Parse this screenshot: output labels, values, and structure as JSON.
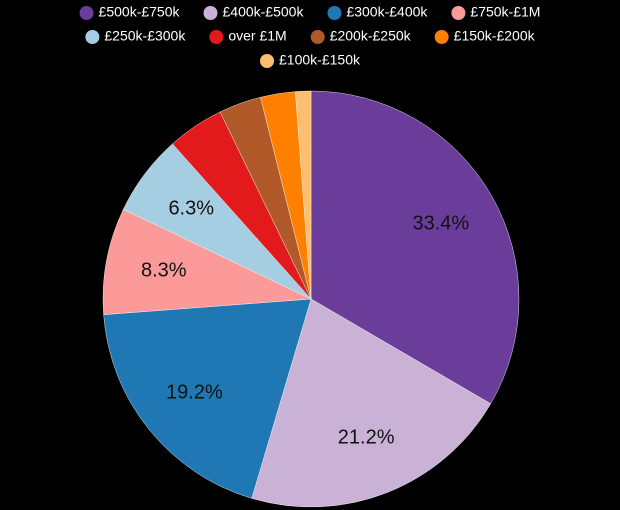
{
  "chart_data": {
    "type": "pie",
    "categories": [
      "£500k-£750k",
      "£400k-£500k",
      "£300k-£400k",
      "£750k-£1M",
      "£250k-£300k",
      "over £1M",
      "£200k-£250k",
      "£150k-£200k",
      "£100k-£150k"
    ],
    "values": [
      33.4,
      21.2,
      19.2,
      8.3,
      6.3,
      4.4,
      3.3,
      2.7,
      1.2
    ],
    "value_labels": [
      "33.4%",
      "21.2%",
      "19.2%",
      "8.3%",
      "6.3%",
      null,
      null,
      null,
      null
    ],
    "colors": [
      "#6a3d9a",
      "#cab2d6",
      "#1f78b4",
      "#fb9a99",
      "#a6cee3",
      "#e31a1c",
      "#b15928",
      "#ff7f00",
      "#fdbf6f"
    ],
    "legend": "top"
  }
}
